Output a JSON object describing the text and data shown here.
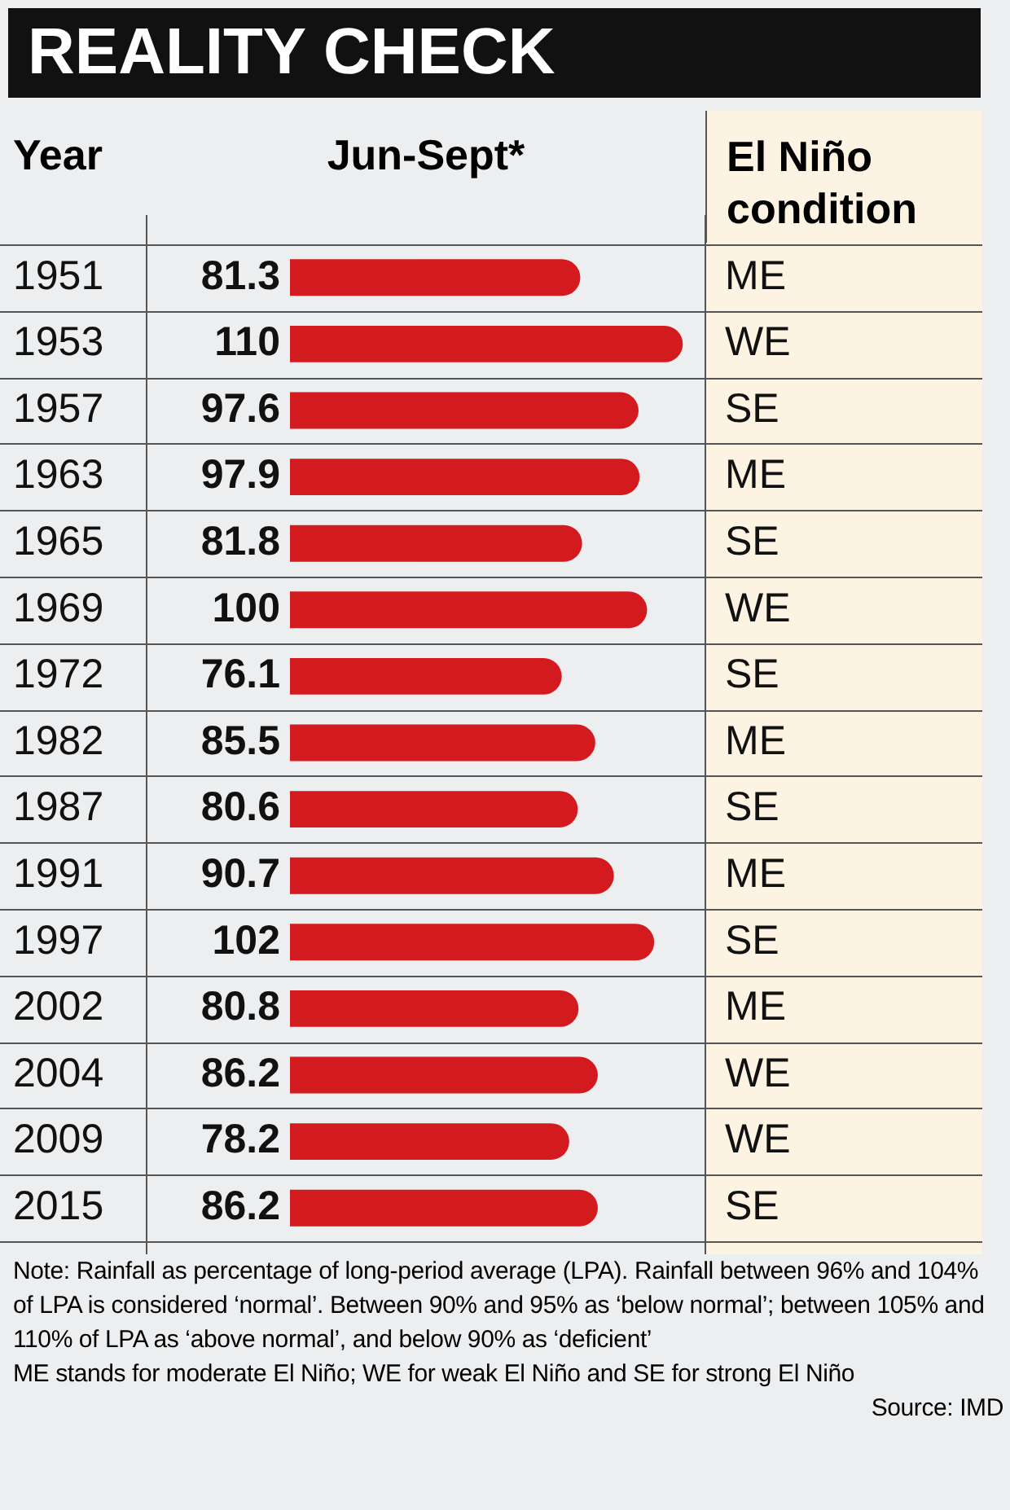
{
  "chart_data": {
    "type": "bar",
    "orientation": "horizontal",
    "title": "REALITY CHECK",
    "ylabel": "Year",
    "xlabel": "Jun-Sept*",
    "y2label": "El Niño condition",
    "categories": [
      "1951",
      "1953",
      "1957",
      "1963",
      "1965",
      "1969",
      "1972",
      "1982",
      "1987",
      "1991",
      "1997",
      "2002",
      "2004",
      "2009",
      "2015"
    ],
    "values": [
      81.3,
      110,
      97.6,
      97.9,
      81.8,
      100,
      76.1,
      85.5,
      80.6,
      90.7,
      102,
      80.8,
      86.2,
      78.2,
      86.2
    ],
    "color": "#d31a1f",
    "data_labels": true,
    "grid": "y",
    "legend": false,
    "annotations": [
      "ME",
      "WE",
      "SE",
      "ME",
      "SE",
      "WE",
      "SE",
      "ME",
      "SE",
      "ME",
      "SE",
      "ME",
      "WE",
      "WE",
      "SE",
      "Note:  Rainfall as percentage of long-period average (LPA). Rainfall between 96% and 104% of LPA is considered ‘normal’. Between 90% and 95% as ‘below normal’; between 105% and 110% of LPA as ‘above normal’, and below 90% as ‘deficient’",
      "ME stands for moderate El Niño; WE for weak El Niño and SE for strong El Niño",
      "Source: IMD"
    ]
  }
}
